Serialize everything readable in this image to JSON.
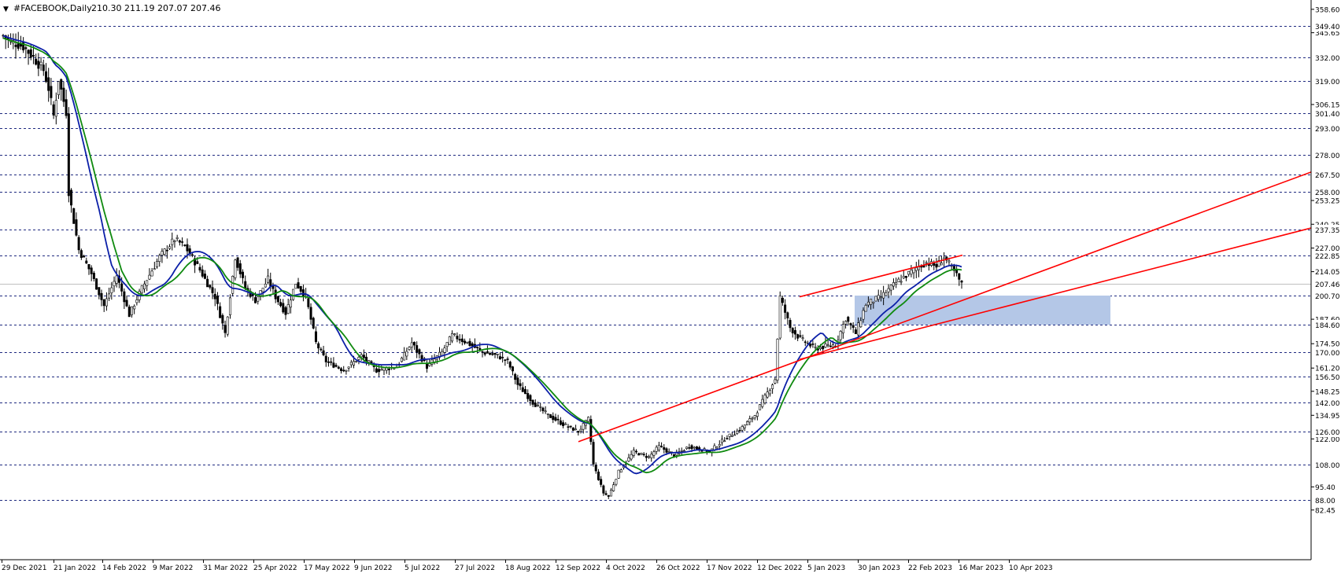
{
  "header": {
    "title": "#FACEBOOK,Daily",
    "ohlc": "210.30 211.19 207.07 207.46"
  },
  "colors": {
    "background": "#ffffff",
    "grid_dashed": "#1f2a80",
    "candle": "#000000",
    "ma_fast": "#0b1fa8",
    "ma_slow": "#0f8a0f",
    "trendline": "#ff0000",
    "zone_fill": "#b4c7e7",
    "current_price_line": "#c0c0c0",
    "axis_text": "#000000"
  },
  "chart_data": {
    "type": "candlestick",
    "title": "#FACEBOOK,Daily",
    "ylim": [
      82.45,
      358.6
    ],
    "x_tick_labels": [
      "29 Dec 2021",
      "21 Jan 2022",
      "14 Feb 2022",
      "9 Mar 2022",
      "31 Mar 2022",
      "25 Apr 2022",
      "17 May 2022",
      "9 Jun 2022",
      "5 Jul 2022",
      "27 Jul 2022",
      "18 Aug 2022",
      "12 Sep 2022",
      "4 Oct 2022",
      "26 Oct 2022",
      "17 Nov 2022",
      "12 Dec 2022",
      "5 Jan 2023",
      "30 Jan 2023",
      "22 Feb 2023",
      "16 Mar 2023",
      "10 Apr 2023"
    ],
    "y_tick_labels": [
      "358.60",
      "345.65",
      "306.15",
      "253.25",
      "240.25",
      "227.00",
      "214.05",
      "187.60",
      "174.50",
      "161.20",
      "148.25",
      "134.95",
      "122.00",
      "95.40",
      "82.45"
    ],
    "horizontal_levels": [
      "349.40",
      "332.00",
      "319.00",
      "301.40",
      "293.00",
      "278.00",
      "267.50",
      "258.00",
      "237.35",
      "222.85",
      "200.70",
      "184.60",
      "170.00",
      "156.50",
      "142.00",
      "126.00",
      "108.00",
      "88.00"
    ],
    "current_price": "207.46",
    "support_zone": [
      184.6,
      200.7
    ],
    "trendlines": [
      {
        "from": [
          "24 Oct 2022",
          120.5
        ],
        "to": [
          "right edge",
          268.8
        ]
      },
      {
        "from": [
          "30 Jan 2023",
          200
        ],
        "to": [
          "20 Apr 2023",
          223
        ]
      },
      {
        "from": [
          "30 Jan 2023",
          166
        ],
        "to": [
          "right edge",
          238.2
        ]
      }
    ],
    "moving_averages": [
      "blue",
      "green"
    ],
    "path_keypoints": [
      [
        0,
        344
      ],
      [
        3,
        341
      ],
      [
        8,
        338
      ],
      [
        12,
        332
      ],
      [
        16,
        325
      ],
      [
        18,
        315
      ],
      [
        20,
        300
      ],
      [
        22,
        320
      ],
      [
        25,
        302
      ],
      [
        26,
        258
      ],
      [
        28,
        242
      ],
      [
        30,
        226
      ],
      [
        35,
        213
      ],
      [
        40,
        195
      ],
      [
        45,
        212
      ],
      [
        50,
        190
      ],
      [
        55,
        205
      ],
      [
        62,
        222
      ],
      [
        68,
        232
      ],
      [
        72,
        228
      ],
      [
        78,
        215
      ],
      [
        84,
        200
      ],
      [
        88,
        180
      ],
      [
        92,
        222
      ],
      [
        96,
        205
      ],
      [
        100,
        198
      ],
      [
        105,
        210
      ],
      [
        108,
        200
      ],
      [
        112,
        191
      ],
      [
        116,
        208
      ],
      [
        120,
        200
      ],
      [
        124,
        175
      ],
      [
        128,
        165
      ],
      [
        135,
        160
      ],
      [
        142,
        168
      ],
      [
        148,
        160
      ],
      [
        156,
        162
      ],
      [
        162,
        175
      ],
      [
        168,
        162
      ],
      [
        174,
        170
      ],
      [
        178,
        179
      ],
      [
        184,
        175
      ],
      [
        190,
        170
      ],
      [
        196,
        168
      ],
      [
        200,
        165
      ],
      [
        204,
        152
      ],
      [
        210,
        142
      ],
      [
        216,
        135
      ],
      [
        222,
        130
      ],
      [
        228,
        126
      ],
      [
        232,
        133
      ],
      [
        234,
        108
      ],
      [
        238,
        92
      ],
      [
        240,
        90
      ],
      [
        244,
        104
      ],
      [
        250,
        115
      ],
      [
        256,
        112
      ],
      [
        260,
        118
      ],
      [
        266,
        113
      ],
      [
        272,
        118
      ],
      [
        280,
        115
      ],
      [
        286,
        122
      ],
      [
        292,
        127
      ],
      [
        298,
        135
      ],
      [
        304,
        150
      ],
      [
        306,
        155
      ],
      [
        308,
        200
      ],
      [
        312,
        183
      ],
      [
        316,
        177
      ],
      [
        322,
        172
      ],
      [
        330,
        174
      ],
      [
        334,
        188
      ],
      [
        338,
        180
      ],
      [
        342,
        196
      ],
      [
        348,
        200
      ],
      [
        354,
        208
      ],
      [
        358,
        212
      ],
      [
        362,
        216
      ],
      [
        366,
        219
      ],
      [
        370,
        217
      ],
      [
        373,
        222
      ],
      [
        378,
        212
      ],
      [
        380,
        207
      ]
    ]
  }
}
